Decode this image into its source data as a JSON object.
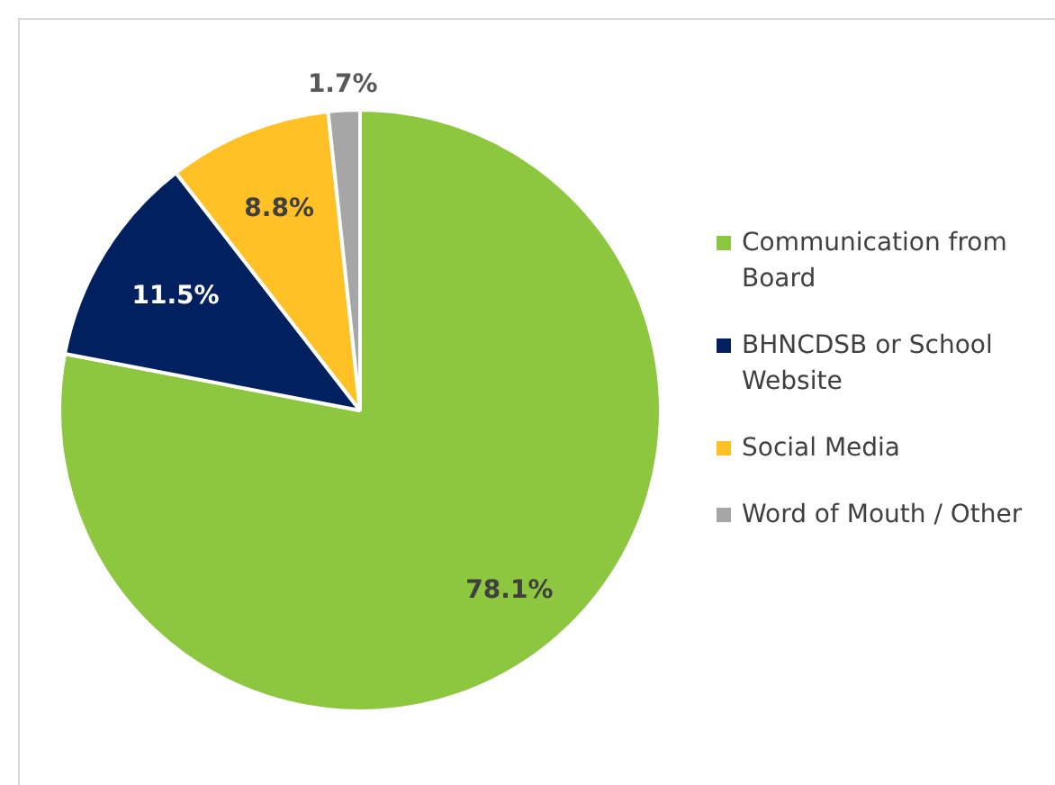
{
  "chart_data": {
    "type": "pie",
    "categories": [
      "Communication from Board",
      "BHNCDSB or School Website",
      "Social Media",
      "Word of Mouth / Other"
    ],
    "values": [
      78.1,
      11.5,
      8.8,
      1.7
    ],
    "colors": [
      "#8dc63f",
      "#002060",
      "#ffc125",
      "#a6a6a6"
    ],
    "value_labels": [
      "78.1%",
      "11.5%",
      "8.8%",
      "1.7%"
    ],
    "legend": "right"
  }
}
